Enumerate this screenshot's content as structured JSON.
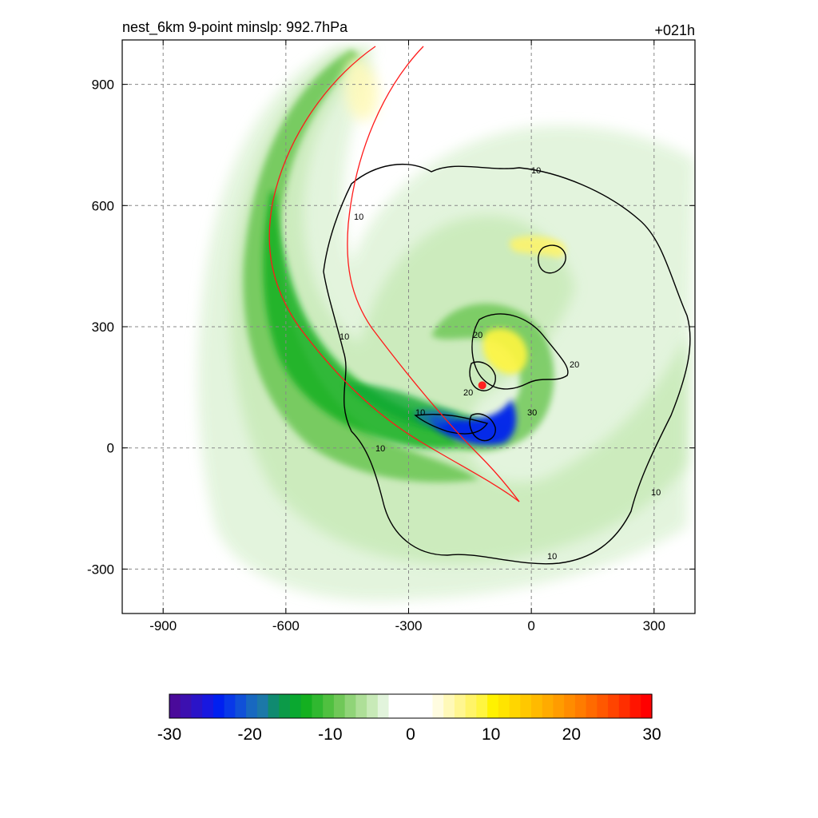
{
  "title_left": "nest_6km  9-point minslp: 992.7hPa",
  "title_right": "+021h",
  "chart_data": {
    "type": "heatmap",
    "title": "nest_6km  9-point minslp: 992.7hPa",
    "forecast_hour_label": "+021h",
    "xlim": [
      -1000,
      400
    ],
    "ylim": [
      -410,
      1010
    ],
    "x_ticks": [
      -900,
      -600,
      -300,
      0,
      300
    ],
    "y_ticks": [
      -300,
      0,
      300,
      600,
      900
    ],
    "x_tick_labels": [
      "-900",
      "-600",
      "-300",
      "0",
      "300"
    ],
    "y_tick_labels": [
      "-300",
      "0",
      "300",
      "600",
      "900"
    ],
    "grid": true,
    "colorbar": {
      "min": -30,
      "max": 30,
      "tick_values": [
        -30,
        -20,
        -10,
        0,
        10,
        20,
        30
      ],
      "tick_labels": [
        "-30",
        "-20",
        "-10",
        "0",
        "10",
        "20",
        "30"
      ],
      "colors": [
        "#4a0a9a",
        "#3c10b0",
        "#2a14c8",
        "#1818e0",
        "#0020f0",
        "#0838e8",
        "#1050d8",
        "#1868c0",
        "#1c78a8",
        "#108a70",
        "#0c9a48",
        "#0aa830",
        "#14b020",
        "#30b830",
        "#50c040",
        "#70c858",
        "#90d478",
        "#aedf98",
        "#c8eab8",
        "#e2f4dc",
        "#ffffff",
        "#ffffff",
        "#ffffff",
        "#ffffff",
        "#fffce0",
        "#fff9b8",
        "#fff690",
        "#fff468",
        "#fff540",
        "#fff200",
        "#ffe400",
        "#ffd600",
        "#ffc800",
        "#ffba00",
        "#ffab00",
        "#ff9c00",
        "#ff8c00",
        "#ff7c00",
        "#ff6a00",
        "#ff5800",
        "#ff4400",
        "#ff2e00",
        "#ff1400",
        "#ff0000"
      ]
    },
    "center_marker": {
      "x": -120,
      "y": 155,
      "color": "#ff2020"
    },
    "contour_levels": [
      10,
      20,
      30
    ],
    "contour_label_values": [
      "10",
      "10",
      "10",
      "10",
      "10",
      "10",
      "10",
      "20",
      "20",
      "20",
      "30"
    ]
  }
}
